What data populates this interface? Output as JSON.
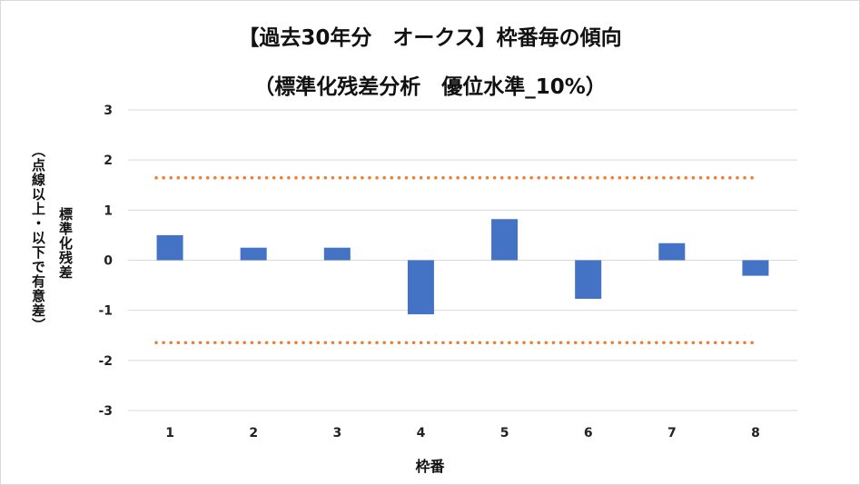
{
  "chart_data": {
    "type": "bar",
    "title": "【過去30年分　オークス】枠番毎の傾向",
    "subtitle": "（標準化残差分析　優位水準_10%）",
    "xlabel": "枠番",
    "ylabel": "標準化残差",
    "ylabel_note": "（点線以上・以下で有意差）",
    "categories": [
      "1",
      "2",
      "3",
      "4",
      "5",
      "6",
      "7",
      "8"
    ],
    "series": [
      {
        "values": [
          0.5,
          0.25,
          0.25,
          -1.08,
          0.82,
          -0.77,
          0.34,
          -0.31
        ]
      }
    ],
    "threshold_lines": [
      1.645,
      -1.645
    ],
    "ylim": [
      -3,
      3
    ],
    "yticks": [
      "3",
      "2",
      "1",
      "0",
      "-1",
      "-2",
      "-3"
    ],
    "grid": true,
    "colors": {
      "bar": "#4472c4",
      "threshold": "#ed7d31",
      "grid": "#d9d9d9"
    }
  }
}
